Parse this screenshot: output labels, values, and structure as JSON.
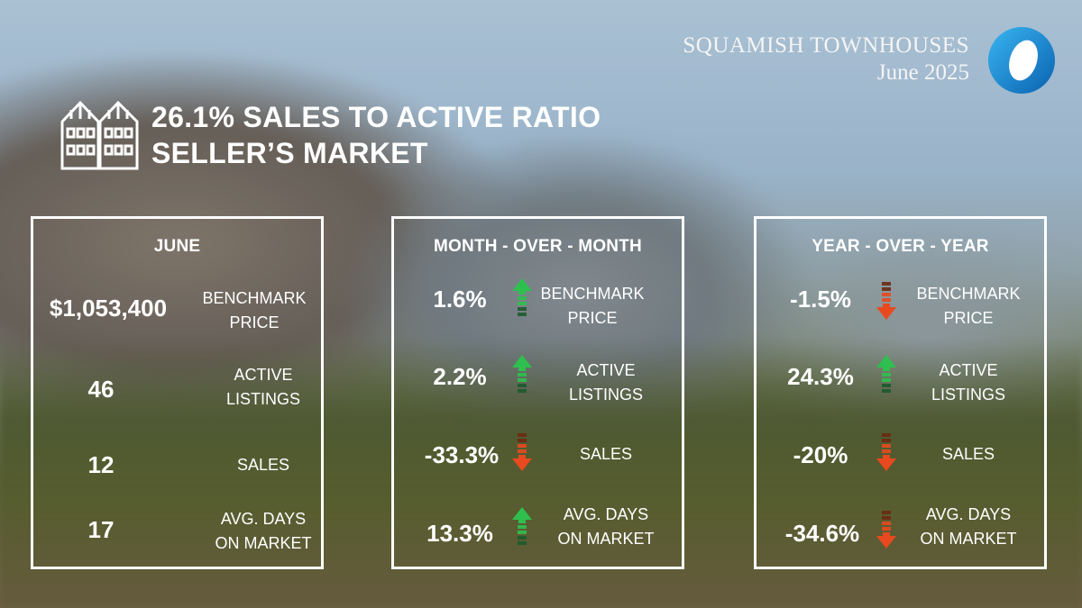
{
  "brand": {
    "title": "SQUAMISH TOWNHOUSES",
    "subtitle": "June 2025",
    "logo_icon": "ring-logo-icon",
    "logo_color": "#1a8fd6"
  },
  "headline": {
    "icon": "townhouse-icon",
    "line1": "26.1% SALES TO ACTIVE RATIO",
    "line2": "SELLER’S MARKET"
  },
  "colors": {
    "up": "#2fbf4f",
    "down": "#e8491f"
  },
  "panels": [
    {
      "title": "JUNE",
      "rows": [
        {
          "value": "$1,053,400",
          "label_line1": "BENCHMARK",
          "label_line2": "PRICE"
        },
        {
          "value": "46",
          "label_line1": "ACTIVE",
          "label_line2": "LISTINGS"
        },
        {
          "value": "12",
          "label_line1": "SALES",
          "label_line2": ""
        },
        {
          "value": "17",
          "label_line1": "AVG. DAYS",
          "label_line2": "ON MARKET"
        }
      ]
    },
    {
      "title": "MONTH - OVER - MONTH",
      "rows": [
        {
          "value": "1.6%",
          "direction": "up",
          "label_line1": "BENCHMARK",
          "label_line2": "PRICE"
        },
        {
          "value": "2.2%",
          "direction": "up",
          "label_line1": "ACTIVE",
          "label_line2": "LISTINGS"
        },
        {
          "value": "-33.3%",
          "direction": "down",
          "label_line1": "SALES",
          "label_line2": ""
        },
        {
          "value": "13.3%",
          "direction": "up",
          "label_line1": "AVG. DAYS",
          "label_line2": "ON MARKET"
        }
      ]
    },
    {
      "title": "YEAR - OVER - YEAR",
      "rows": [
        {
          "value": "-1.5%",
          "direction": "down",
          "label_line1": "BENCHMARK",
          "label_line2": "PRICE"
        },
        {
          "value": "24.3%",
          "direction": "up",
          "label_line1": "ACTIVE",
          "label_line2": "LISTINGS"
        },
        {
          "value": "-20%",
          "direction": "down",
          "label_line1": "SALES",
          "label_line2": ""
        },
        {
          "value": "-34.6%",
          "direction": "down",
          "label_line1": "AVG. DAYS",
          "label_line2": "ON MARKET"
        }
      ]
    }
  ]
}
